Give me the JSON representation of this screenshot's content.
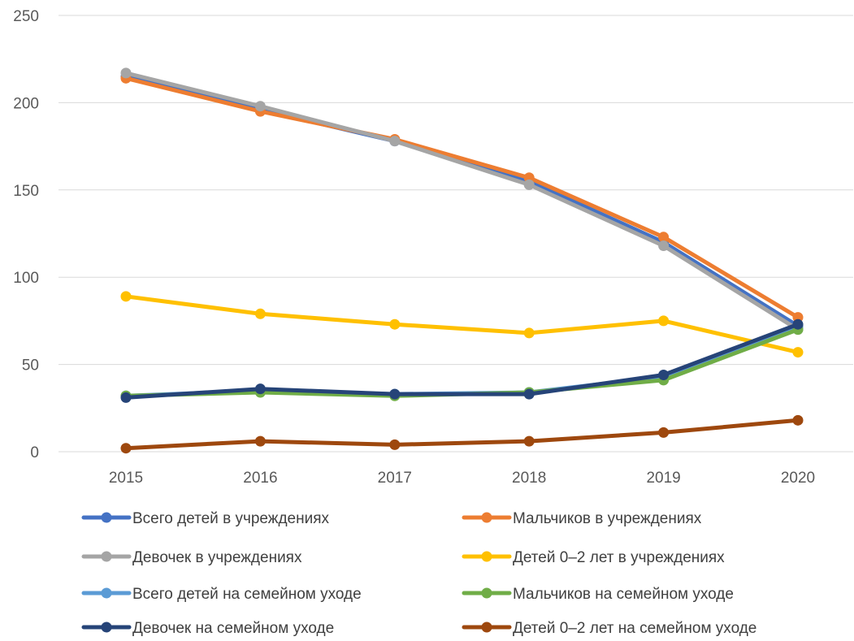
{
  "chart_data": {
    "type": "line",
    "categories": [
      "2015",
      "2016",
      "2017",
      "2018",
      "2019",
      "2020"
    ],
    "ylim": [
      0,
      250
    ],
    "yticks": [
      "0",
      "50",
      "100",
      "150",
      "200",
      "250"
    ],
    "grid": true,
    "legend_position": "bottom",
    "series": [
      {
        "name": "Всего детей в учреждениях",
        "color": "#4472C4",
        "values": [
          215,
          196,
          178,
          155,
          120,
          72
        ]
      },
      {
        "name": "Мальчиков в учреждениях",
        "color": "#ED7D31",
        "values": [
          214,
          195,
          179,
          157,
          123,
          77
        ]
      },
      {
        "name": "Девочек в учреждениях",
        "color": "#A5A5A5",
        "values": [
          217,
          198,
          178,
          153,
          118,
          70
        ]
      },
      {
        "name": "Детей 0–2 лет в учреждениях",
        "color": "#FFC000",
        "values": [
          89,
          79,
          73,
          68,
          75,
          57
        ]
      },
      {
        "name": "Всего детей на семейном уходе",
        "color": "#5B9BD5",
        "values": [
          32,
          35,
          33,
          34,
          43,
          71
        ]
      },
      {
        "name": "Мальчиков на семейном уходе",
        "color": "#70AD47",
        "values": [
          32,
          34,
          32,
          34,
          41,
          70
        ]
      },
      {
        "name": "Девочек на семейном уходе",
        "color": "#264478",
        "values": [
          31,
          36,
          33,
          33,
          44,
          73
        ]
      },
      {
        "name": "Детей 0–2 лет на семейном уходе",
        "color": "#9E480E",
        "values": [
          2,
          6,
          4,
          6,
          11,
          18
        ]
      }
    ]
  }
}
